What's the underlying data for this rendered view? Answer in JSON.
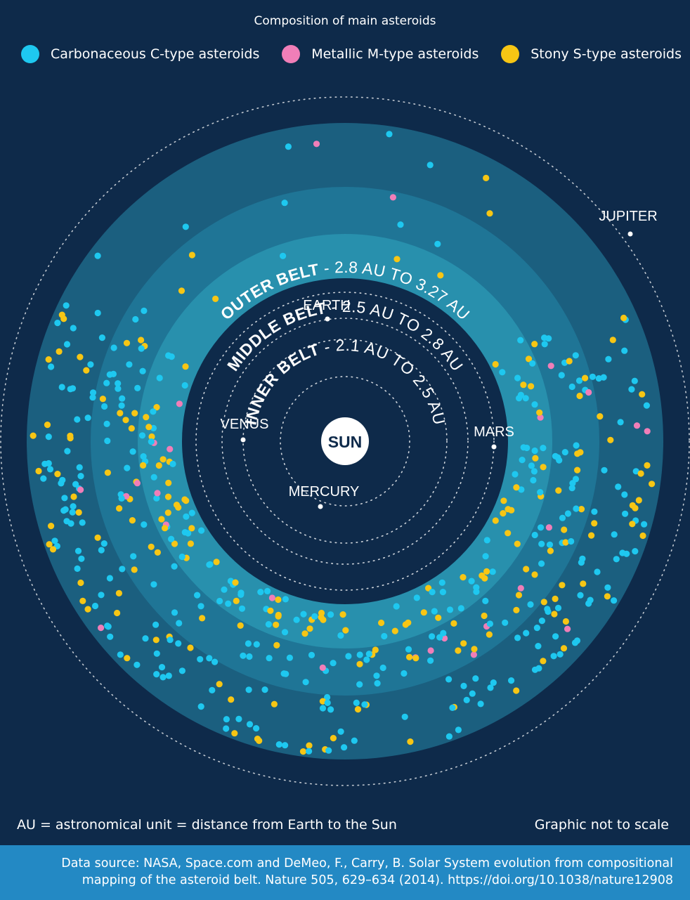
{
  "title": "Composition of main asteroids",
  "legend": [
    {
      "label": "Carbonaceous C-type asteroids",
      "color": "#1ec8f0"
    },
    {
      "label": "Metallic M-type asteroids",
      "color": "#f07eb8"
    },
    {
      "label": "Stony S-type asteroids",
      "color": "#f7c614"
    }
  ],
  "belts": {
    "outer": {
      "name": "OUTER BELT",
      "range": " - 2.8 AU TO 3.27 AU"
    },
    "middle": {
      "name": "MIDDLE BELT",
      "range": " - 2.5 AU TO 2.8 AU"
    },
    "inner": {
      "name": "INNER BELT",
      "range": " - 2.1 AU TO 2.5 AU"
    }
  },
  "planets": {
    "sun": "SUN",
    "mercury": "MERCURY",
    "venus": "VENUS",
    "earth": "EARTH",
    "mars": "MARS",
    "jupiter": "JUPITER"
  },
  "footnote_left": "AU = astronomical unit = distance from Earth to the Sun",
  "footnote_right": "Graphic not to scale",
  "source": {
    "line1": "Data source: NASA, Space.com and DeMeo, F., Carry, B. Solar System evolution from compositional",
    "line2": "mapping of the asteroid belt. Nature 505, 629–634 (2014). https://doi.org/10.1038/nature12908"
  },
  "colors": {
    "background": "#0e2a4a",
    "outer_belt": "#1b5f7f",
    "middle_belt": "#1f7596",
    "inner_belt": "#2890ad",
    "inner_space": "#0e2a4a",
    "source_bar": "#2389c4"
  }
}
